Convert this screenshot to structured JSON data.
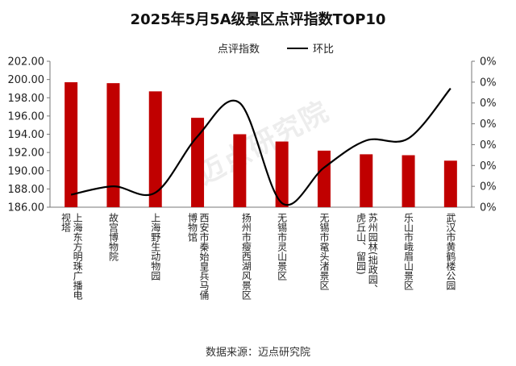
{
  "chart_data": {
    "type": "bar",
    "title": "2025年5月5A级景区点评指数TOP10",
    "categories": [
      "上海东方明珠广播电视塔",
      "故宫博物院",
      "上海野生动物园",
      "西安市秦始皇兵马俑博物馆",
      "扬州市瘦西湖风景区",
      "无锡市灵山景区",
      "无锡市鼋头渚景区",
      "苏州园林(拙政园、虎丘山、留园)",
      "乐山市峨眉山景区",
      "武汉市黄鹤楼公园"
    ],
    "series": [
      {
        "name": "点评指数",
        "type": "bar",
        "color": "#c00000",
        "axis": "left",
        "values": [
          199.7,
          199.6,
          198.7,
          195.8,
          194.0,
          193.2,
          192.2,
          191.8,
          191.7,
          191.1
        ]
      },
      {
        "name": "环比",
        "type": "line",
        "color": "#000000",
        "axis": "right",
        "values": [
          0.6,
          1.0,
          0.7,
          3.4,
          5.0,
          0.2,
          1.9,
          3.2,
          3.3,
          5.7
        ]
      }
    ],
    "yaxis_left": {
      "ylim": [
        186,
        202
      ],
      "ticks": [
        "186.00",
        "188.00",
        "190.00",
        "192.00",
        "194.00",
        "196.00",
        "198.00",
        "200.00",
        "202.00"
      ]
    },
    "yaxis_right": {
      "ylim": [
        0,
        7
      ],
      "ticks": [
        "0%",
        "0%",
        "0%",
        "0%",
        "0%",
        "0%",
        "0%",
        "0%"
      ]
    },
    "legend_position": "top",
    "grid": false
  },
  "watermark": "迈点研究院",
  "source": "数据来源：迈点研究院"
}
